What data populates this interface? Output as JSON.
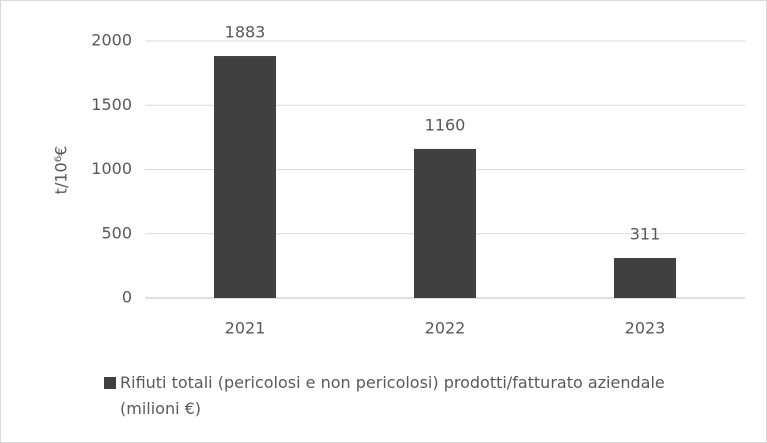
{
  "chart_data": {
    "type": "bar",
    "y_label": "t/10⁶€",
    "categories": [
      "2021",
      "2022",
      "2023"
    ],
    "series": [
      {
        "name": "Rifiuti totali (pericolosi e non pericolosi) prodotti/fatturato aziendale (milioni €)",
        "color": "#404040",
        "values": [
          1883,
          1160,
          311
        ]
      }
    ],
    "ylim": [
      0,
      2000
    ],
    "yticks": [
      0,
      500,
      1000,
      1500,
      2000
    ],
    "grid": true,
    "legend": "bottom"
  }
}
